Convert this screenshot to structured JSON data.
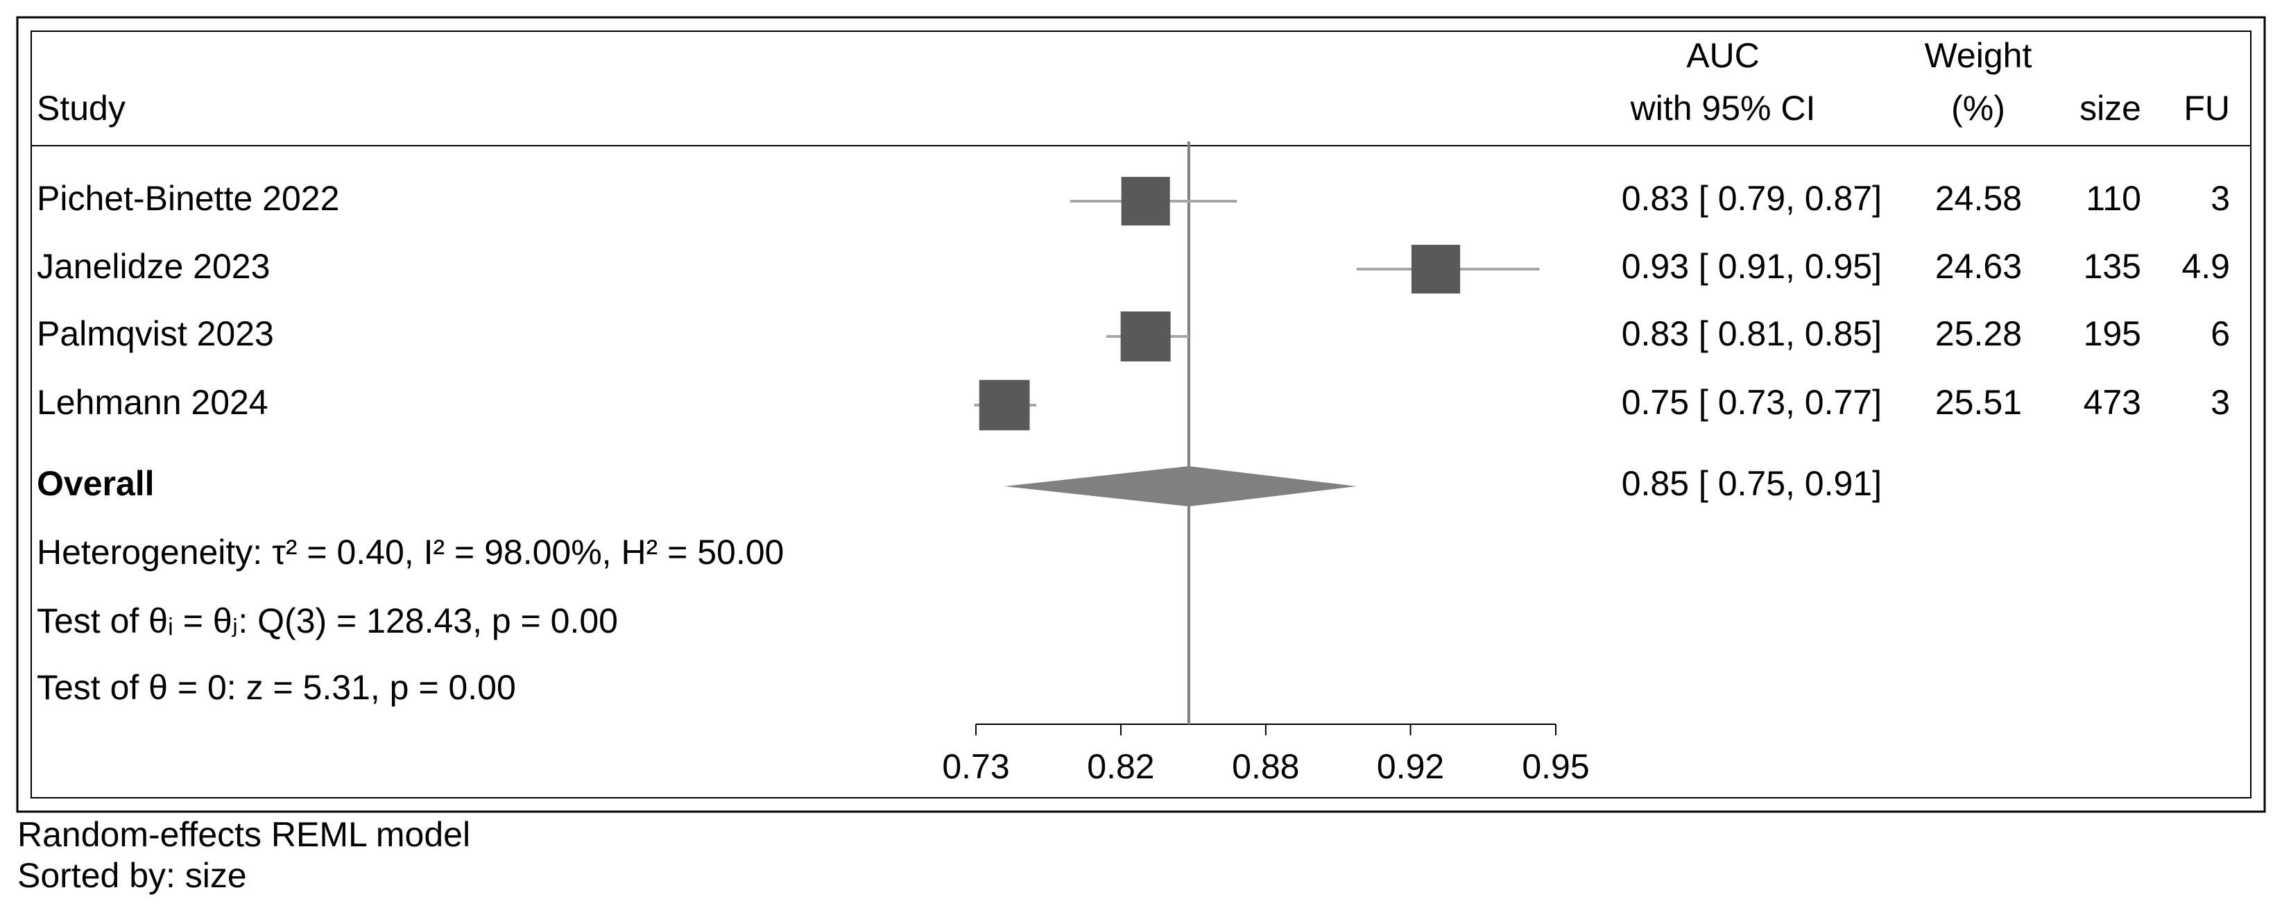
{
  "chart_data": {
    "type": "forest",
    "headers": {
      "study": "Study",
      "auc": [
        "AUC",
        "with 95% CI"
      ],
      "weight": [
        "Weight",
        "(%)"
      ],
      "size": "size",
      "fu": "FU"
    },
    "studies": [
      "Pichet-Binette 2022",
      "Janelidze 2023",
      "Palmqvist 2023",
      "Lehmann 2024"
    ],
    "values": [
      0.83,
      0.93,
      0.83,
      0.75
    ],
    "lower": [
      0.79,
      0.91,
      0.81,
      0.73
    ],
    "upper": [
      0.87,
      0.95,
      0.85,
      0.77
    ],
    "value_labels": [
      "0.83 [ 0.79,  0.87]",
      "0.93 [ 0.91,  0.95]",
      "0.83 [ 0.81,  0.85]",
      "0.75 [ 0.73,  0.77]"
    ],
    "weights": [
      24.58,
      24.63,
      25.28,
      25.51
    ],
    "sizes": [
      110,
      135,
      195,
      473
    ],
    "fu": [
      3,
      4.9,
      6,
      3
    ],
    "overall": {
      "label": "Overall",
      "value": 0.85,
      "lower": 0.75,
      "upper": 0.91,
      "value_label": "0.85 [ 0.75,  0.91]"
    },
    "heterogeneity": "Heterogeneity: τ² = 0.40, I² = 98.00%, H² = 50.00",
    "tests": [
      "Test of θᵢ = θⱼ: Q(3) = 128.43, p = 0.00",
      "Test of θ = 0: z = 5.31, p = 0.00"
    ],
    "xscale": "logit",
    "xlim": [
      0.7311,
      0.9526
    ],
    "xticks": [
      {
        "value": 0.7311,
        "label": "0.73"
      },
      {
        "value": 0.8176,
        "label": "0.82"
      },
      {
        "value": 0.8808,
        "label": "0.88"
      },
      {
        "value": 0.9241,
        "label": "0.92"
      },
      {
        "value": 0.9526,
        "label": "0.95"
      }
    ],
    "notes": [
      "Random-effects REML model",
      "Sorted by: size"
    ],
    "box_color": "#595959",
    "ci_color": "#a6a6a6",
    "diamond_color": "#808080"
  }
}
